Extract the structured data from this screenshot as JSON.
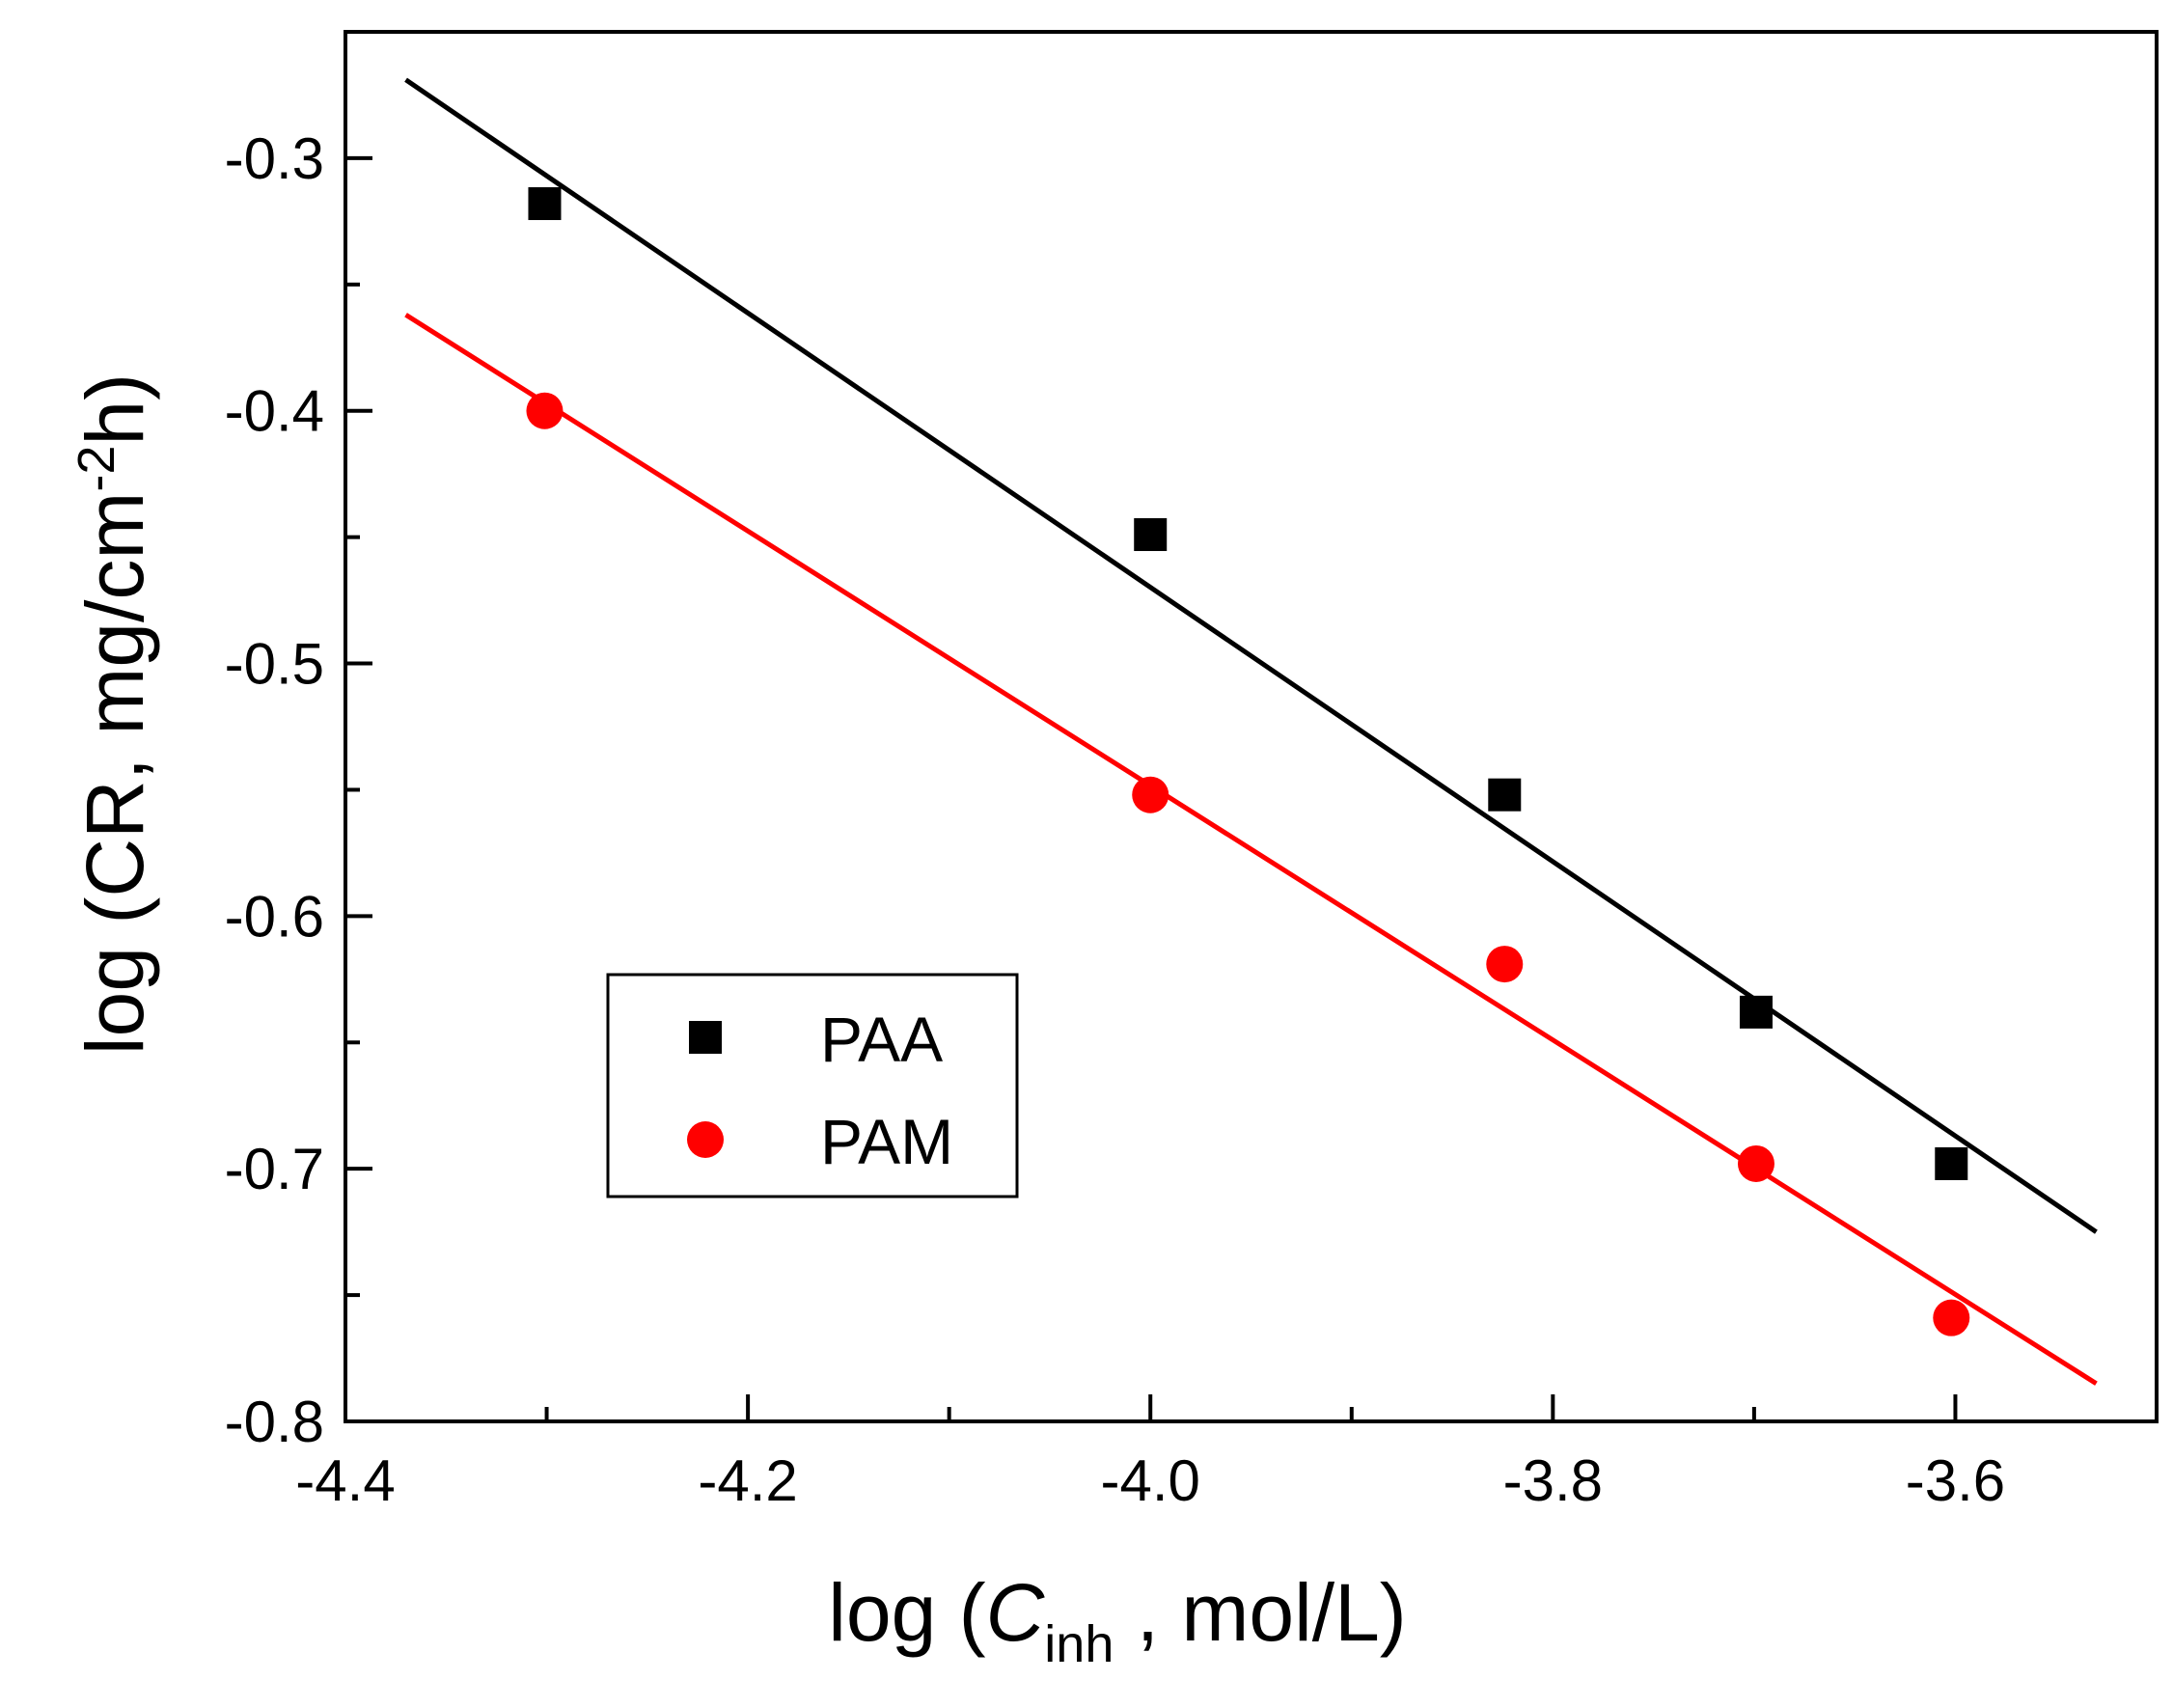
{
  "chart_data": {
    "type": "scatter",
    "title": "",
    "xlabel_prefix": "log (",
    "xlabel_italic": "C",
    "xlabel_sub": "inh",
    "xlabel_suffix": " , mol/L)",
    "ylabel_prefix": "log (CR, mg/cm",
    "ylabel_sup": "-2",
    "ylabel_suffix": "h)",
    "xlim": [
      -4.4,
      -3.5
    ],
    "ylim": [
      -0.8,
      -0.25
    ],
    "x_ticks": [
      -4.4,
      -4.2,
      -4.0,
      -3.8,
      -3.6
    ],
    "x_tick_labels": [
      "-4.4",
      "-4.2",
      "-4.0",
      "-3.8",
      "-3.6"
    ],
    "x_minor_ticks": [
      -4.3,
      -4.1,
      -3.9,
      -3.7,
      -3.5
    ],
    "y_ticks": [
      -0.8,
      -0.7,
      -0.6,
      -0.5,
      -0.4,
      -0.3
    ],
    "y_tick_labels": [
      "-0.8",
      "-0.7",
      "-0.6",
      "-0.5",
      "-0.4",
      "-0.3"
    ],
    "y_minor_ticks": [
      -0.75,
      -0.65,
      -0.55,
      -0.45,
      -0.35,
      -0.25
    ],
    "legend_position": "lower-left",
    "series": [
      {
        "name": "PAA",
        "marker": "square",
        "color": "#000000",
        "x": [
          -4.301,
          -4.0,
          -3.824,
          -3.699,
          -3.602
        ],
        "y": [
          -0.318,
          -0.449,
          -0.552,
          -0.638,
          -0.698
        ],
        "fit": {
          "x": [
            -4.37,
            -3.53
          ],
          "y": [
            -0.269,
            -0.725
          ]
        }
      },
      {
        "name": "PAM",
        "marker": "circle",
        "color": "#ff0000",
        "x": [
          -4.301,
          -4.0,
          -3.824,
          -3.699,
          -3.602
        ],
        "y": [
          -0.4,
          -0.552,
          -0.619,
          -0.698,
          -0.759
        ],
        "fit": {
          "x": [
            -4.37,
            -3.53
          ],
          "y": [
            -0.362,
            -0.785
          ]
        }
      }
    ]
  }
}
